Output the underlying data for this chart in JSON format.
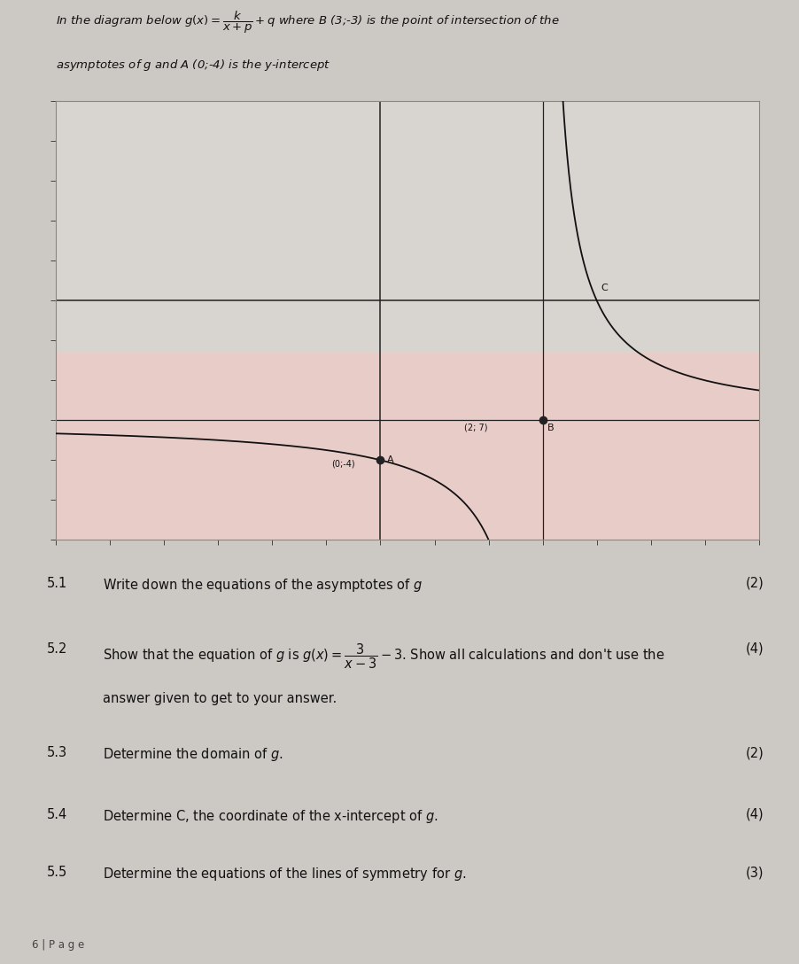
{
  "page_bg": "#ccc8c4",
  "graph_bg_upper": "#d8d4d0",
  "graph_bg_lower": "#e8ccc8",
  "graph_border_color": "#888880",
  "k": 3,
  "p": -3,
  "q": -3,
  "asymptote_x": 3,
  "asymptote_y": -3,
  "xlim": [
    -6,
    7
  ],
  "ylim": [
    -6,
    5
  ],
  "point_A": [
    0,
    -4
  ],
  "point_B": [
    3,
    -3
  ],
  "x_intercept": 4,
  "title_line1": "In the diagram below $g(x) = \\dfrac{k}{x+p} + q$ where B (3;-3) is the point of intersection of the",
  "title_line2": "asymptotes of $g$ and A (0;-4) is the y-intercept",
  "q51_num": "5.1",
  "q51_text": "Write down the equations of the asymptotes of $g$",
  "q51_marks": "(2)",
  "q52_num": "5.2",
  "q52_text": "Show that the equation of $g$ is $g(x) = \\dfrac{3}{x-3} - 3$. Show all calculations and don't use the",
  "q52_text2": "answer given to get to your answer.",
  "q52_marks": "(4)",
  "q53_num": "5.3",
  "q53_text": "Determine the domain of $g$.",
  "q53_marks": "(2)",
  "q54_num": "5.4",
  "q54_text": "Determine C, the coordinate of the x-intercept of $g$.",
  "q54_marks": "(4)",
  "q55_num": "5.5",
  "q55_text": "Determine the equations of the lines of symmetry for $g$.",
  "q55_marks": "(3)",
  "footer": "6 | P a g e"
}
